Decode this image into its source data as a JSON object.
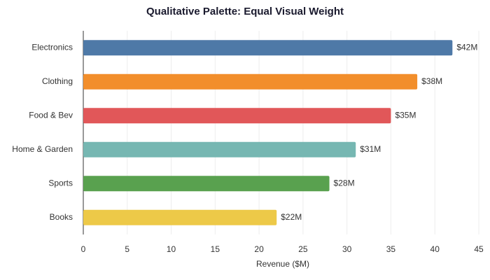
{
  "chart_data": {
    "type": "barh",
    "title": "Qualitative Palette: Equal Visual Weight",
    "xlabel": "Revenue ($M)",
    "categories": [
      "Electronics",
      "Clothing",
      "Food & Bev",
      "Home & Garden",
      "Sports",
      "Books"
    ],
    "values": [
      42,
      38,
      35,
      31,
      28,
      22
    ],
    "value_labels": [
      "$42M",
      "$38M",
      "$35M",
      "$31M",
      "$28M",
      "$22M"
    ],
    "colors": [
      "#4e79a7",
      "#f28e2b",
      "#e15759",
      "#76b7b2",
      "#59a14f",
      "#edc948"
    ],
    "xlim": [
      0,
      45
    ],
    "xticks": [
      0,
      5,
      10,
      15,
      20,
      25,
      30,
      35,
      40,
      45
    ],
    "grid": true
  }
}
